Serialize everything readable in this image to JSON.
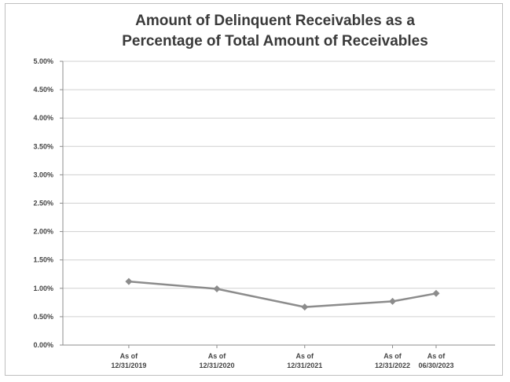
{
  "chart_data": {
    "type": "line",
    "title_lines": [
      "Amount of Delinquent Receivables as a",
      "Percentage of Total Amount of Receivables"
    ],
    "xlabel": "",
    "ylabel": "",
    "categories": [
      [
        "As of",
        "12/31/2019"
      ],
      [
        "As of",
        "12/31/2020"
      ],
      [
        "As of",
        "12/31/2021"
      ],
      [
        "As of",
        "12/31/2022"
      ],
      [
        "As of",
        "06/30/2023"
      ]
    ],
    "x_positions": [
      "2019-12-31",
      "2020-12-31",
      "2021-12-31",
      "2022-12-31",
      "2023-06-30"
    ],
    "y_ticks": [
      "0.00%",
      "0.50%",
      "1.00%",
      "1.50%",
      "2.00%",
      "2.50%",
      "3.00%",
      "3.50%",
      "4.00%",
      "4.50%",
      "5.00%"
    ],
    "ylim": [
      0,
      5
    ],
    "series": [
      {
        "values": [
          1.12,
          0.99,
          0.67,
          0.77,
          0.91
        ]
      }
    ],
    "grid": true,
    "legend": "none",
    "line_color": "#8c8c8c",
    "grid_color": "#d0d0d0"
  }
}
